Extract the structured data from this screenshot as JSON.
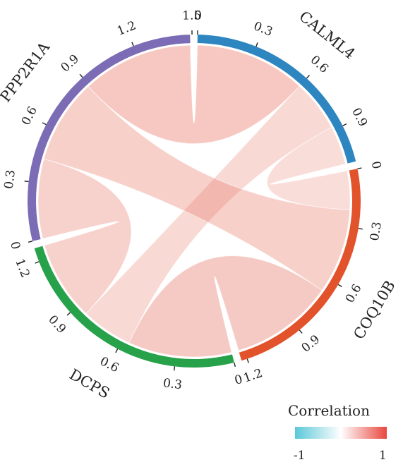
{
  "chart_data": {
    "type": "chord",
    "sectors": [
      {
        "name": "CALML4",
        "color": "#2e86c1",
        "ticks": [
          "0",
          "0.3",
          "0.6",
          "0.9"
        ]
      },
      {
        "name": "COQ10B",
        "color": "#e2522b",
        "ticks": [
          "0",
          "0.3",
          "0.6",
          "0.9",
          "1.2"
        ]
      },
      {
        "name": "DCPS",
        "color": "#27a14a",
        "ticks": [
          "0",
          "0.3",
          "0.6",
          "0.9",
          "1.2"
        ]
      },
      {
        "name": "PPP2R1A",
        "color": "#7b6cb5",
        "ticks": [
          "0",
          "0.3",
          "0.6",
          "0.9",
          "1.2",
          "1.5"
        ]
      }
    ],
    "links": [
      {
        "from": "CALML4",
        "to": "COQ10B",
        "value": 0.21
      },
      {
        "from": "CALML4",
        "to": "DCPS",
        "value": 0.28
      },
      {
        "from": "CALML4",
        "to": "PPP2R1A",
        "value": 0.6
      },
      {
        "from": "COQ10B",
        "to": "DCPS",
        "value": 0.56
      },
      {
        "from": "COQ10B",
        "to": "PPP2R1A",
        "value": 0.46
      },
      {
        "from": "DCPS",
        "to": "PPP2R1A",
        "value": 0.43
      }
    ],
    "legend": {
      "title": "Correlation",
      "min_label": "-1",
      "max_label": "1",
      "colors": [
        "#5bc8d8",
        "#ffffff",
        "#e8473e"
      ]
    }
  }
}
